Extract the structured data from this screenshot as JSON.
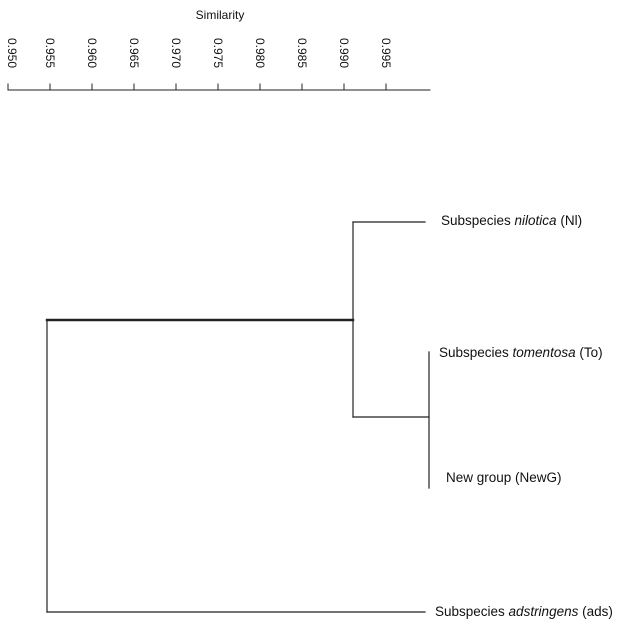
{
  "axis": {
    "title": "Similarity",
    "ticks": [
      "0.950",
      "0.955",
      "0.960",
      "0.965",
      "0.970",
      "0.975",
      "0.980",
      "0.985",
      "0.990",
      "0.995"
    ]
  },
  "leaves": [
    {
      "prefix": "Subspecies ",
      "name": "nilotica",
      "code": " (Nl)"
    },
    {
      "prefix": "Subspecies ",
      "name": "tomentosa",
      "code": " (To)"
    },
    {
      "prefix": "",
      "name": "",
      "code": "New group (NewG)"
    },
    {
      "prefix": "Subspecies ",
      "name": "adstringens",
      "code": " (ads)"
    }
  ],
  "merges": [
    {
      "members": [
        "To",
        "NewG"
      ],
      "similarity": 0.9965
    },
    {
      "members": [
        "Nl",
        "To+NewG"
      ],
      "similarity": 0.991
    },
    {
      "members": [
        "ads",
        "Nl+To+NewG"
      ],
      "similarity": 0.954
    }
  ]
}
